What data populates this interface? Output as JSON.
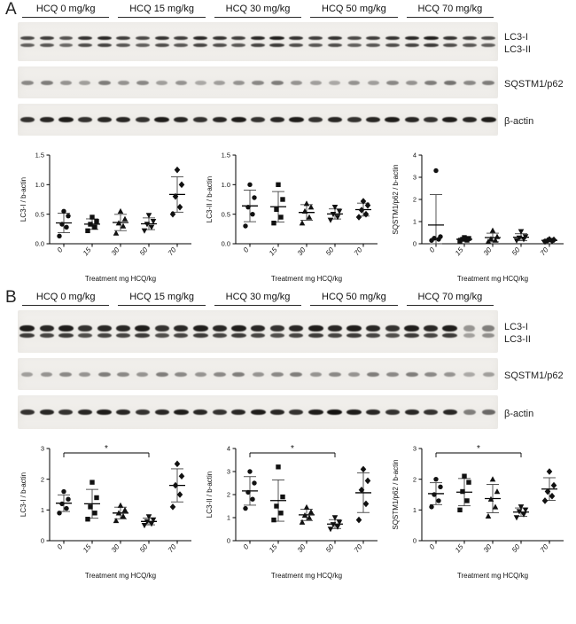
{
  "panels": [
    {
      "label": "A",
      "groups": [
        "HCQ 0 mg/kg",
        "HCQ 15 mg/kg",
        "HCQ 30 mg/kg",
        "HCQ 50 mg/kg",
        "HCQ 70 mg/kg"
      ],
      "blots": [
        {
          "label": "LC3-I",
          "label2": "LC3-II",
          "bands": 2,
          "band_heights": [
            4,
            4
          ],
          "band_gap": 4,
          "strip_height": 44,
          "lanes": [
            0.75,
            0.8,
            0.7,
            0.85,
            0.9,
            0.8,
            0.75,
            0.85,
            0.8,
            0.9,
            0.85,
            0.8,
            0.9,
            0.95,
            0.85,
            0.8,
            0.85,
            0.75,
            0.8,
            0.85,
            0.9,
            0.95,
            0.85,
            0.8,
            0.75
          ]
        },
        {
          "label": "SQSTM1/p62",
          "label2": "",
          "bands": 1,
          "band_heights": [
            5
          ],
          "band_gap": 0,
          "strip_height": 36,
          "lanes": [
            0.45,
            0.5,
            0.4,
            0.35,
            0.5,
            0.4,
            0.45,
            0.35,
            0.4,
            0.3,
            0.35,
            0.4,
            0.45,
            0.5,
            0.4,
            0.35,
            0.3,
            0.4,
            0.35,
            0.45,
            0.4,
            0.5,
            0.55,
            0.45,
            0.5
          ]
        },
        {
          "label": "β-actin",
          "label2": "",
          "bands": 1,
          "band_heights": [
            6
          ],
          "band_gap": 0,
          "strip_height": 36,
          "lanes": [
            0.85,
            0.9,
            0.95,
            0.85,
            0.9,
            0.9,
            0.85,
            0.95,
            0.9,
            0.85,
            0.9,
            0.95,
            0.85,
            0.9,
            0.95,
            0.85,
            0.9,
            0.85,
            0.9,
            0.95,
            0.9,
            0.85,
            0.95,
            0.9,
            0.95
          ]
        }
      ]
    },
    {
      "label": "B",
      "groups": [
        "HCQ 0 mg/kg",
        "HCQ 15 mg/kg",
        "HCQ 30 mg/kg",
        "HCQ 50 mg/kg",
        "HCQ 70 mg/kg"
      ],
      "blots": [
        {
          "label": "LC3-I",
          "label2": "LC3-II",
          "bands": 2,
          "band_heights": [
            7,
            5
          ],
          "band_gap": 2,
          "strip_height": 48,
          "lanes": [
            0.95,
            0.9,
            0.95,
            0.85,
            0.9,
            0.9,
            0.95,
            0.85,
            0.9,
            0.95,
            0.9,
            0.95,
            0.9,
            0.85,
            0.9,
            0.95,
            0.9,
            0.95,
            0.9,
            0.85,
            0.95,
            0.9,
            0.95,
            0.4,
            0.5
          ]
        },
        {
          "label": "SQSTM1/p62",
          "label2": "",
          "bands": 1,
          "band_heights": [
            5
          ],
          "band_gap": 0,
          "strip_height": 36,
          "lanes": [
            0.35,
            0.4,
            0.45,
            0.4,
            0.5,
            0.45,
            0.4,
            0.5,
            0.45,
            0.4,
            0.45,
            0.5,
            0.4,
            0.45,
            0.5,
            0.4,
            0.45,
            0.4,
            0.5,
            0.45,
            0.5,
            0.45,
            0.4,
            0.3,
            0.35
          ]
        },
        {
          "label": "β-actin",
          "label2": "",
          "bands": 1,
          "band_heights": [
            6
          ],
          "band_gap": 0,
          "strip_height": 38,
          "lanes": [
            0.85,
            0.9,
            0.85,
            0.9,
            0.95,
            0.9,
            0.85,
            0.9,
            0.95,
            0.9,
            0.85,
            0.9,
            0.95,
            0.9,
            0.85,
            0.95,
            1.0,
            0.95,
            0.9,
            0.85,
            0.9,
            0.85,
            0.9,
            0.5,
            0.6
          ]
        }
      ]
    }
  ],
  "chart_data": [
    {
      "type": "scatter",
      "ylabel": "LC3-I / b-actin",
      "xlabel": "Treatment mg HCQ/kg",
      "ylim": [
        0,
        1.5
      ],
      "yticks": [
        0,
        0.5,
        1.0,
        1.5
      ],
      "ytick_labels": [
        "0.0",
        "0.5",
        "1.0",
        "1.5"
      ],
      "categories": [
        "0",
        "15",
        "30",
        "50",
        "70"
      ],
      "groups": [
        [
          0.13,
          0.28,
          0.33,
          0.47,
          0.55
        ],
        [
          0.22,
          0.28,
          0.33,
          0.38,
          0.45
        ],
        [
          0.18,
          0.3,
          0.35,
          0.42,
          0.55
        ],
        [
          0.22,
          0.28,
          0.33,
          0.38,
          0.48
        ],
        [
          0.5,
          0.62,
          0.8,
          1.0,
          1.25
        ]
      ],
      "sig": null
    },
    {
      "type": "scatter",
      "ylabel": "LC3-II / b-actin",
      "xlabel": "Treatment mg HCQ/kg",
      "ylim": [
        0,
        1.5
      ],
      "yticks": [
        0,
        0.5,
        1.0,
        1.5
      ],
      "ytick_labels": [
        "0.0",
        "0.5",
        "1.0",
        "1.5"
      ],
      "categories": [
        "0",
        "15",
        "30",
        "50",
        "70"
      ],
      "groups": [
        [
          0.3,
          0.5,
          0.62,
          0.78,
          1.0
        ],
        [
          0.35,
          0.45,
          0.58,
          0.75,
          1.0
        ],
        [
          0.35,
          0.45,
          0.55,
          0.62,
          0.68
        ],
        [
          0.4,
          0.45,
          0.5,
          0.55,
          0.62
        ],
        [
          0.45,
          0.5,
          0.57,
          0.65,
          0.72
        ]
      ],
      "sig": null
    },
    {
      "type": "scatter",
      "ylabel": "SQSTM1/p62 / b-actin",
      "xlabel": "Treatment mg HCQ/kg",
      "ylim": [
        0,
        4
      ],
      "yticks": [
        0,
        1,
        2,
        3,
        4
      ],
      "ytick_labels": [
        "0",
        "1",
        "2",
        "3",
        "4"
      ],
      "categories": [
        "0",
        "15",
        "30",
        "50",
        "70"
      ],
      "groups": [
        [
          0.15,
          0.2,
          0.25,
          0.32,
          3.3
        ],
        [
          0.13,
          0.16,
          0.2,
          0.24,
          0.28
        ],
        [
          0.1,
          0.16,
          0.22,
          0.32,
          0.6
        ],
        [
          0.14,
          0.2,
          0.26,
          0.32,
          0.55
        ],
        [
          0.1,
          0.13,
          0.15,
          0.18,
          0.2
        ]
      ],
      "sig": null
    },
    {
      "type": "scatter",
      "ylabel": "LC3-I / b-actin",
      "xlabel": "Treatment mg HCQ/kg",
      "ylim": [
        0,
        3
      ],
      "yticks": [
        0,
        1,
        2,
        3
      ],
      "ytick_labels": [
        "0",
        "1",
        "2",
        "3"
      ],
      "categories": [
        "0",
        "15",
        "30",
        "50",
        "70"
      ],
      "groups": [
        [
          0.9,
          1.05,
          1.2,
          1.35,
          1.6
        ],
        [
          0.7,
          0.9,
          1.1,
          1.4,
          1.9
        ],
        [
          0.65,
          0.8,
          0.9,
          1.0,
          1.15
        ],
        [
          0.5,
          0.55,
          0.62,
          0.68,
          0.78
        ],
        [
          1.1,
          1.5,
          1.8,
          2.1,
          2.5
        ]
      ],
      "sig": {
        "from": 0,
        "to": 3,
        "label": "*"
      }
    },
    {
      "type": "scatter",
      "ylabel": "LC3-II / b-actin",
      "xlabel": "Treatment mg HCQ/kg",
      "ylim": [
        0,
        4
      ],
      "yticks": [
        0,
        1,
        2,
        3,
        4
      ],
      "ytick_labels": [
        "0",
        "1",
        "2",
        "3",
        "4"
      ],
      "categories": [
        "0",
        "15",
        "30",
        "50",
        "70"
      ],
      "groups": [
        [
          1.4,
          1.8,
          2.1,
          2.5,
          3.0
        ],
        [
          0.9,
          1.2,
          1.5,
          1.9,
          3.2
        ],
        [
          0.8,
          1.0,
          1.1,
          1.25,
          1.45
        ],
        [
          0.5,
          0.6,
          0.7,
          0.8,
          1.0
        ],
        [
          0.9,
          1.6,
          2.2,
          2.6,
          3.1
        ]
      ],
      "sig": {
        "from": 0,
        "to": 3,
        "label": "*"
      }
    },
    {
      "type": "scatter",
      "ylabel": "SQSTM1/p62 / b-actin",
      "xlabel": "Treatment mg HCQ/kg",
      "ylim": [
        0,
        3
      ],
      "yticks": [
        0,
        1,
        2,
        3
      ],
      "ytick_labels": [
        "0",
        "1",
        "2",
        "3"
      ],
      "categories": [
        "0",
        "15",
        "30",
        "50",
        "70"
      ],
      "groups": [
        [
          1.1,
          1.3,
          1.5,
          1.75,
          2.0
        ],
        [
          1.0,
          1.3,
          1.6,
          1.9,
          2.1
        ],
        [
          0.8,
          1.1,
          1.35,
          1.6,
          2.0
        ],
        [
          0.75,
          0.85,
          0.95,
          1.0,
          1.1
        ],
        [
          1.3,
          1.45,
          1.6,
          1.8,
          2.25
        ]
      ],
      "sig": {
        "from": 0,
        "to": 3,
        "label": "*"
      }
    }
  ],
  "colors": {
    "marker": "#111111",
    "axis": "#000000",
    "errorbar": "#444444",
    "band": "#141210"
  }
}
